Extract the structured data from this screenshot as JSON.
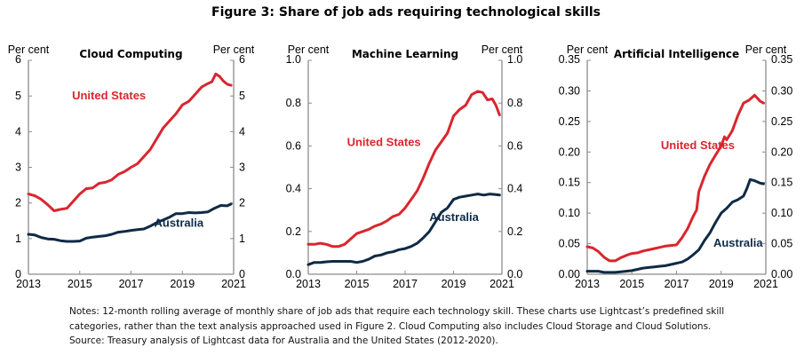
{
  "figure": {
    "title": "Figure 3: Share of job ads requiring technological skills",
    "notes": [
      "Notes: 12-month rolling average of monthly share of job ads that require each technology skill. These charts use Lightcast’s predefined skill",
      "categories, rather than the text analysis approached used in Figure 2. Cloud Computing also includes Cloud Storage and Cloud Solutions.",
      "Source: Treasury analysis of Lightcast data for Australia and the United States (2012-2020)."
    ]
  },
  "colors": {
    "united_states": "#d9262e",
    "australia": "#0f2a45",
    "axis": "#8c8c8c"
  },
  "chart_data": [
    {
      "type": "line",
      "title": "Cloud Computing",
      "ylabel_left": "Per cent",
      "ylabel_right": "Per cent",
      "xlim": [
        2013,
        2021
      ],
      "ylim": [
        0,
        6
      ],
      "xticks": [
        2013,
        2015,
        2017,
        2019,
        2021
      ],
      "xtick_labels": [
        "2013",
        "2015",
        "2017",
        "2019",
        "2021"
      ],
      "yticks": [
        0,
        1,
        2,
        3,
        4,
        5,
        6
      ],
      "ytick_labels": [
        "0",
        "1",
        "2",
        "3",
        "4",
        "5",
        "6"
      ],
      "grid": false,
      "series": [
        {
          "name": "United States",
          "label_pos": [
            2014.7,
            4.9
          ],
          "x": [
            2013.0,
            2013.25,
            2013.5,
            2013.75,
            2014.0,
            2014.25,
            2014.5,
            2014.75,
            2015.0,
            2015.25,
            2015.5,
            2015.75,
            2016.0,
            2016.25,
            2016.5,
            2016.75,
            2017.0,
            2017.25,
            2017.5,
            2017.75,
            2018.0,
            2018.25,
            2018.5,
            2018.75,
            2019.0,
            2019.25,
            2019.5,
            2019.75,
            2020.0,
            2020.15,
            2020.3,
            2020.45,
            2020.6,
            2020.75,
            2020.9
          ],
          "values": [
            2.25,
            2.2,
            2.1,
            1.95,
            1.78,
            1.82,
            1.85,
            2.05,
            2.25,
            2.4,
            2.42,
            2.55,
            2.58,
            2.65,
            2.8,
            2.88,
            3.0,
            3.1,
            3.3,
            3.5,
            3.8,
            4.1,
            4.3,
            4.5,
            4.75,
            4.85,
            5.05,
            5.25,
            5.35,
            5.4,
            5.62,
            5.55,
            5.42,
            5.33,
            5.3
          ]
        },
        {
          "name": "Australia",
          "label_pos": [
            2017.9,
            1.33
          ],
          "x": [
            2013.0,
            2013.25,
            2013.5,
            2013.75,
            2014.0,
            2014.25,
            2014.5,
            2014.75,
            2015.0,
            2015.25,
            2015.5,
            2015.75,
            2016.0,
            2016.25,
            2016.5,
            2016.75,
            2017.0,
            2017.25,
            2017.5,
            2017.75,
            2018.0,
            2018.25,
            2018.5,
            2018.75,
            2019.0,
            2019.25,
            2019.5,
            2019.75,
            2020.0,
            2020.25,
            2020.5,
            2020.75,
            2020.9
          ],
          "values": [
            1.12,
            1.1,
            1.03,
            0.99,
            0.98,
            0.94,
            0.92,
            0.92,
            0.93,
            1.01,
            1.04,
            1.06,
            1.08,
            1.12,
            1.18,
            1.2,
            1.23,
            1.25,
            1.27,
            1.35,
            1.45,
            1.52,
            1.6,
            1.7,
            1.7,
            1.73,
            1.72,
            1.73,
            1.75,
            1.85,
            1.93,
            1.92,
            1.97
          ]
        }
      ]
    },
    {
      "type": "line",
      "title": "Machine Learning",
      "ylabel_left": "Per cent",
      "ylabel_right": "Per cent",
      "xlim": [
        2013,
        2021
      ],
      "ylim": [
        0,
        1.0
      ],
      "xticks": [
        2013,
        2015,
        2017,
        2019,
        2021
      ],
      "xtick_labels": [
        "2013",
        "2015",
        "2017",
        "2019",
        "2021"
      ],
      "yticks": [
        0,
        0.2,
        0.4,
        0.6,
        0.8,
        1.0
      ],
      "ytick_labels": [
        "0.0",
        "0.2",
        "0.4",
        "0.6",
        "0.8",
        "1.0"
      ],
      "grid": false,
      "series": [
        {
          "name": "United States",
          "label_pos": [
            2014.6,
            0.6
          ],
          "x": [
            2013.0,
            2013.25,
            2013.5,
            2013.75,
            2014.0,
            2014.25,
            2014.5,
            2014.75,
            2015.0,
            2015.25,
            2015.5,
            2015.75,
            2016.0,
            2016.25,
            2016.5,
            2016.75,
            2017.0,
            2017.25,
            2017.5,
            2017.75,
            2018.0,
            2018.25,
            2018.5,
            2018.75,
            2019.0,
            2019.25,
            2019.5,
            2019.75,
            2020.0,
            2020.2,
            2020.4,
            2020.6,
            2020.75,
            2020.9
          ],
          "values": [
            0.14,
            0.14,
            0.145,
            0.14,
            0.13,
            0.13,
            0.14,
            0.165,
            0.19,
            0.2,
            0.21,
            0.225,
            0.235,
            0.25,
            0.27,
            0.28,
            0.31,
            0.35,
            0.39,
            0.45,
            0.52,
            0.58,
            0.62,
            0.66,
            0.74,
            0.77,
            0.79,
            0.84,
            0.855,
            0.85,
            0.815,
            0.82,
            0.79,
            0.745
          ]
        },
        {
          "name": "Australia",
          "label_pos": [
            2018.0,
            0.25
          ],
          "x": [
            2013.0,
            2013.25,
            2013.5,
            2013.75,
            2014.0,
            2014.25,
            2014.5,
            2014.75,
            2015.0,
            2015.25,
            2015.5,
            2015.75,
            2016.0,
            2016.25,
            2016.5,
            2016.75,
            2017.0,
            2017.25,
            2017.5,
            2017.75,
            2018.0,
            2018.25,
            2018.5,
            2018.75,
            2019.0,
            2019.25,
            2019.5,
            2019.75,
            2020.0,
            2020.25,
            2020.5,
            2020.75,
            2020.9
          ],
          "values": [
            0.045,
            0.055,
            0.055,
            0.058,
            0.06,
            0.06,
            0.06,
            0.06,
            0.055,
            0.06,
            0.07,
            0.085,
            0.09,
            0.1,
            0.105,
            0.115,
            0.12,
            0.13,
            0.145,
            0.17,
            0.2,
            0.245,
            0.29,
            0.31,
            0.35,
            0.36,
            0.365,
            0.37,
            0.375,
            0.37,
            0.375,
            0.372,
            0.37
          ]
        }
      ]
    },
    {
      "type": "line",
      "title": "Artificial Intelligence",
      "ylabel_left": "Per cent",
      "ylabel_right": "Per cent",
      "xlim": [
        2013,
        2021
      ],
      "ylim": [
        0,
        0.35
      ],
      "xticks": [
        2013,
        2015,
        2017,
        2019,
        2021
      ],
      "xtick_labels": [
        "2013",
        "2015",
        "2017",
        "2019",
        "2021"
      ],
      "yticks": [
        0,
        0.05,
        0.1,
        0.15,
        0.2,
        0.25,
        0.3,
        0.35
      ],
      "ytick_labels": [
        "0.00",
        "0.05",
        "0.10",
        "0.15",
        "0.20",
        "0.25",
        "0.30",
        "0.35"
      ],
      "grid": false,
      "series": [
        {
          "name": "United States",
          "label_pos": [
            2016.3,
            0.205
          ],
          "x": [
            2013.0,
            2013.25,
            2013.5,
            2013.75,
            2014.0,
            2014.25,
            2014.5,
            2014.75,
            2015.0,
            2015.25,
            2015.5,
            2015.75,
            2016.0,
            2016.25,
            2016.5,
            2016.75,
            2017.0,
            2017.25,
            2017.5,
            2017.75,
            2017.9,
            2018.0,
            2018.25,
            2018.5,
            2018.75,
            2019.0,
            2019.15,
            2019.25,
            2019.5,
            2019.75,
            2020.0,
            2020.25,
            2020.5,
            2020.75,
            2020.9
          ],
          "values": [
            0.045,
            0.043,
            0.037,
            0.028,
            0.022,
            0.022,
            0.027,
            0.031,
            0.034,
            0.035,
            0.038,
            0.04,
            0.042,
            0.044,
            0.046,
            0.047,
            0.048,
            0.06,
            0.075,
            0.095,
            0.105,
            0.135,
            0.16,
            0.18,
            0.195,
            0.21,
            0.225,
            0.22,
            0.235,
            0.26,
            0.28,
            0.285,
            0.293,
            0.283,
            0.28
          ]
        },
        {
          "name": "Australia",
          "label_pos": [
            2018.65,
            0.045
          ],
          "x": [
            2013.0,
            2013.25,
            2013.5,
            2013.75,
            2014.0,
            2014.25,
            2014.5,
            2014.75,
            2015.0,
            2015.25,
            2015.5,
            2015.75,
            2016.0,
            2016.25,
            2016.5,
            2016.75,
            2017.0,
            2017.25,
            2017.5,
            2017.75,
            2018.0,
            2018.25,
            2018.5,
            2018.75,
            2019.0,
            2019.25,
            2019.5,
            2019.75,
            2020.0,
            2020.15,
            2020.3,
            2020.5,
            2020.75,
            2020.9
          ],
          "values": [
            0.005,
            0.005,
            0.005,
            0.003,
            0.003,
            0.003,
            0.004,
            0.005,
            0.006,
            0.008,
            0.01,
            0.011,
            0.012,
            0.013,
            0.014,
            0.016,
            0.018,
            0.02,
            0.025,
            0.032,
            0.04,
            0.055,
            0.068,
            0.085,
            0.1,
            0.108,
            0.118,
            0.122,
            0.128,
            0.14,
            0.155,
            0.153,
            0.149,
            0.148
          ]
        }
      ]
    }
  ]
}
